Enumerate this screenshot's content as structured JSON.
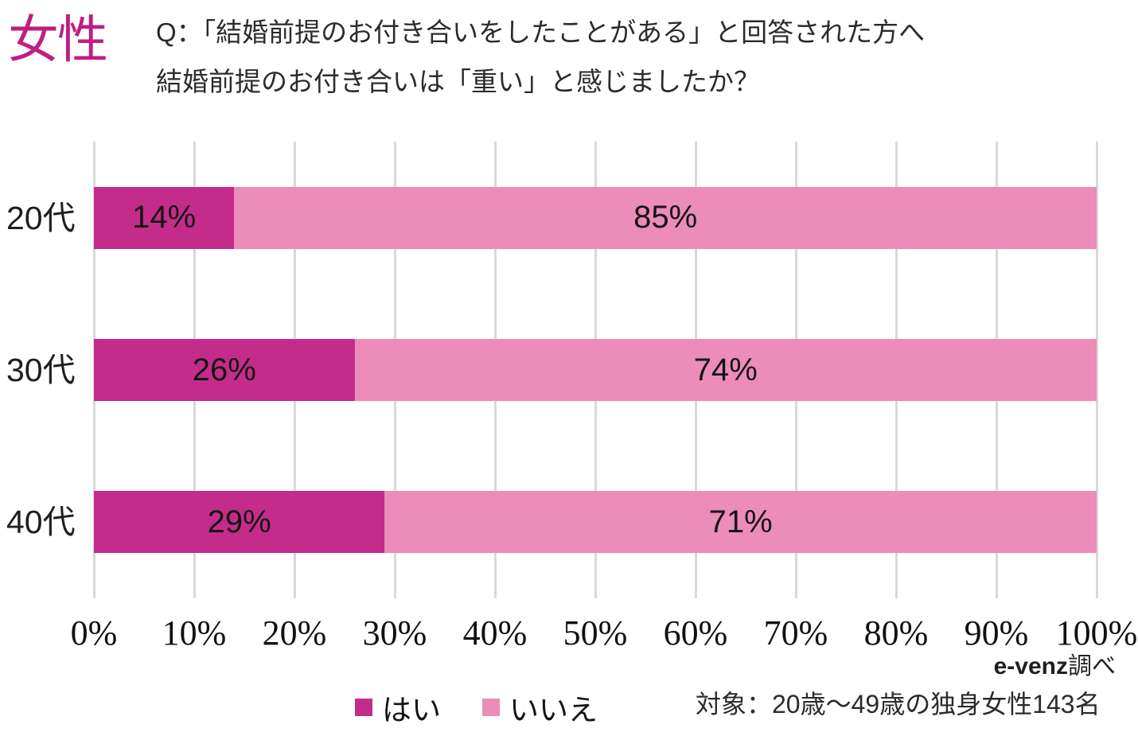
{
  "header": {
    "group_label": "女性",
    "group_label_color": "#bf1e80",
    "question_line1": "Q：「結婚前提のお付き合いをしたことがある」と回答された方へ",
    "question_line2": "結婚前提のお付き合いは「重い」と感じましたか？"
  },
  "chart_data": {
    "type": "bar",
    "orientation": "horizontal",
    "stacked": true,
    "categories": [
      "20代",
      "30代",
      "40代"
    ],
    "series": [
      {
        "name": "はい",
        "color": "#c42c8b",
        "values": [
          14,
          26,
          29
        ]
      },
      {
        "name": "いいえ",
        "color": "#ec8cb8",
        "values": [
          85,
          74,
          71
        ]
      }
    ],
    "value_suffix": "%",
    "xlim": [
      0,
      100
    ],
    "x_ticks": [
      "0%",
      "10%",
      "20%",
      "30%",
      "40%",
      "50%",
      "60%",
      "70%",
      "80%",
      "90%",
      "100%"
    ],
    "grid": true,
    "gridline_color": "#d9d9d9",
    "legend_position": "bottom"
  },
  "footer": {
    "source_brand": "e-venz",
    "source_suffix": "調べ",
    "note": "対象：20歳〜49歳の独身女性143名"
  }
}
